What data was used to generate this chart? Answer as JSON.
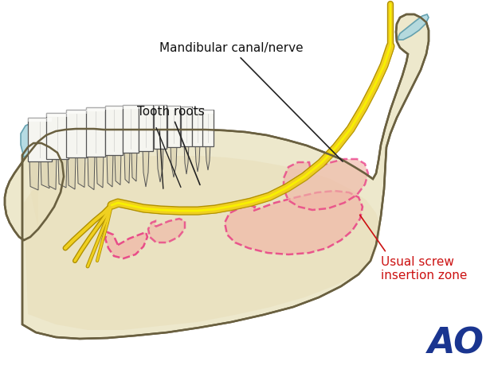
{
  "background_color": "#ffffff",
  "bone_fill": "#ede8cc",
  "bone_fill2": "#e8ddb8",
  "bone_edge": "#6a6040",
  "cartilage_fill": "#aed8e0",
  "cartilage_edge": "#5a9aaa",
  "nerve_color": "#f0d020",
  "nerve_dark": "#b09000",
  "nerve_inner": "#f8e860",
  "pink_fill": "#f0b8a8",
  "pink_edge": "#e8207a",
  "tooth_fill": "#f5f5f0",
  "tooth_fill2": "#e8e8e0",
  "tooth_edge": "#555555",
  "gum_fill": "#d8c8a8",
  "label_mandibular": "Mandibular canal/nerve",
  "label_tooth": "Tooth roots",
  "label_screw": "Usual screw\ninsertion zone",
  "label_screw_color": "#cc1111",
  "ao_color": "#1a3590",
  "annotation_color": "#111111",
  "label_fontsize": 11,
  "ao_fontsize": 32
}
